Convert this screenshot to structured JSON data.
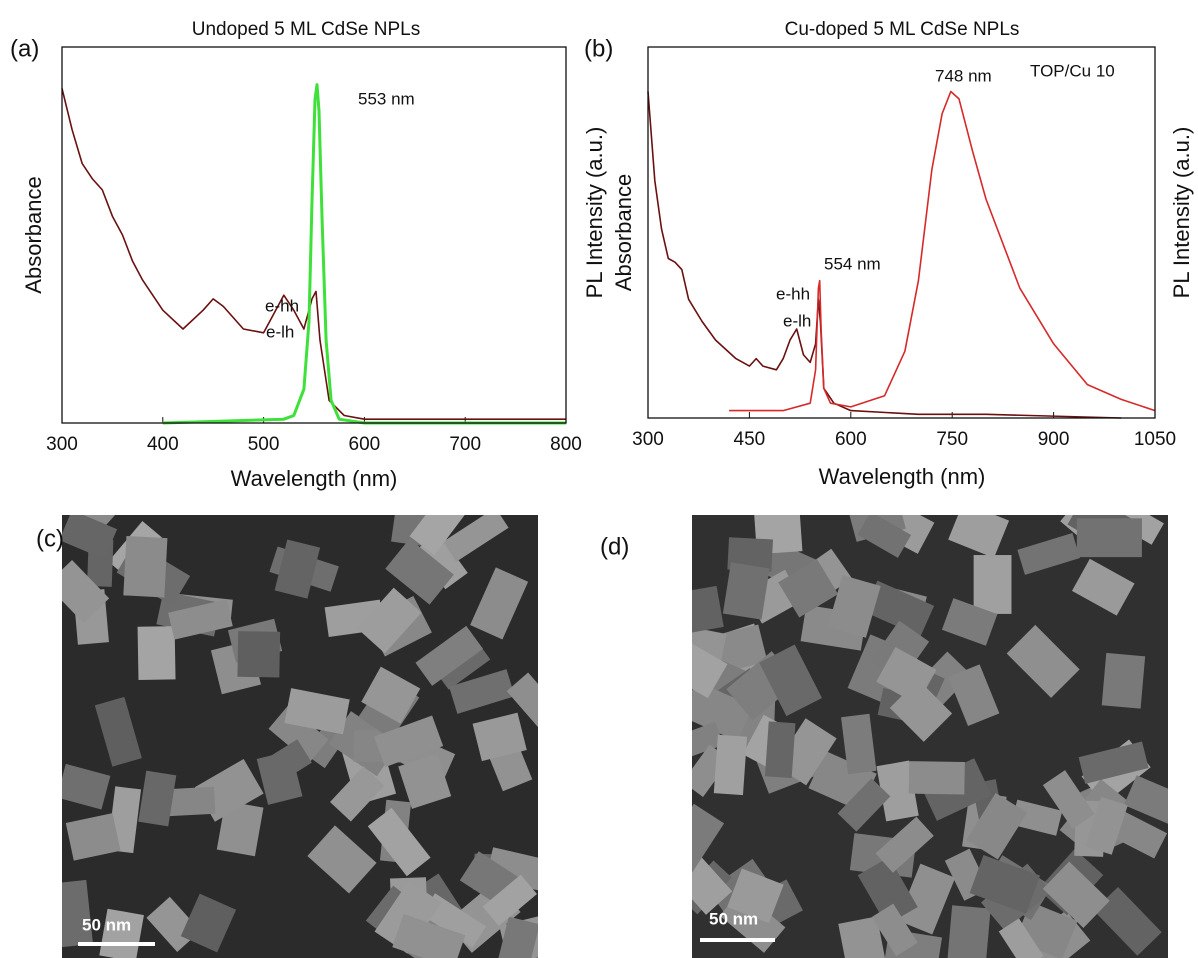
{
  "chart_data": [
    {
      "type": "line",
      "title": "Undoped 5 ML CdSe NPLs",
      "panel_label": "(a)",
      "xlabel": "Wavelength (nm)",
      "ylabel": "Absorbance",
      "xlim": [
        300,
        800
      ],
      "xticks": [
        300,
        400,
        500,
        600,
        700,
        800
      ],
      "ylim": [
        0,
        1
      ],
      "annotations": [
        "553 nm",
        "e-hh",
        "e-lh"
      ],
      "series": [
        {
          "color": "#6b1010",
          "x": [
            300,
            310,
            320,
            330,
            340,
            350,
            360,
            370,
            380,
            400,
            420,
            440,
            450,
            460,
            480,
            500,
            510,
            520,
            530,
            540,
            548,
            552,
            556,
            565,
            580,
            600,
            700,
            800
          ],
          "values": [
            0.89,
            0.78,
            0.69,
            0.65,
            0.62,
            0.55,
            0.5,
            0.43,
            0.38,
            0.3,
            0.25,
            0.3,
            0.33,
            0.31,
            0.25,
            0.24,
            0.29,
            0.34,
            0.3,
            0.25,
            0.33,
            0.35,
            0.22,
            0.06,
            0.02,
            0.01,
            0.01,
            0.01
          ]
        },
        {
          "color": "#3ee03a",
          "x": [
            400,
            520,
            530,
            540,
            545,
            548,
            551,
            553,
            555,
            558,
            562,
            567,
            575,
            600,
            700,
            800
          ],
          "values": [
            0,
            0.01,
            0.02,
            0.09,
            0.27,
            0.59,
            0.86,
            0.9,
            0.83,
            0.54,
            0.22,
            0.06,
            0.01,
            0,
            0,
            0
          ]
        }
      ]
    },
    {
      "type": "line",
      "title": "Cu-doped 5 ML CdSe NPLs",
      "panel_label": "(b)",
      "xlabel": "Wavelength (nm)",
      "ylabel": "Absorbance",
      "ylabel_extra": "PL Intensity (a.u.)",
      "y2label": "PL Intensity (a.u.)",
      "xlim": [
        300,
        1050
      ],
      "xticks": [
        300,
        450,
        600,
        750,
        900,
        1050
      ],
      "ylim": [
        0,
        1
      ],
      "annotations": [
        "748 nm",
        "TOP/Cu 10",
        "554 nm",
        "e-hh",
        "e-lh"
      ],
      "series": [
        {
          "color": "#6b1010",
          "x": [
            300,
            310,
            320,
            330,
            340,
            350,
            360,
            380,
            400,
            430,
            450,
            460,
            470,
            490,
            500,
            510,
            520,
            530,
            540,
            548,
            552,
            555,
            560,
            575,
            600,
            700,
            800,
            1000
          ],
          "values": [
            0.88,
            0.64,
            0.51,
            0.43,
            0.42,
            0.4,
            0.32,
            0.26,
            0.21,
            0.16,
            0.14,
            0.16,
            0.14,
            0.13,
            0.16,
            0.21,
            0.24,
            0.17,
            0.15,
            0.2,
            0.32,
            0.26,
            0.08,
            0.04,
            0.02,
            0.01,
            0.01,
            0
          ]
        },
        {
          "color": "#d62a2a",
          "x": [
            420,
            500,
            540,
            548,
            552,
            554,
            556,
            560,
            570,
            600,
            650,
            680,
            700,
            720,
            735,
            748,
            760,
            780,
            800,
            850,
            900,
            950,
            1000,
            1050
          ],
          "values": [
            0.02,
            0.02,
            0.04,
            0.13,
            0.35,
            0.37,
            0.24,
            0.08,
            0.04,
            0.03,
            0.06,
            0.18,
            0.37,
            0.67,
            0.82,
            0.88,
            0.86,
            0.72,
            0.59,
            0.35,
            0.2,
            0.09,
            0.05,
            0.02
          ]
        }
      ]
    }
  ],
  "images": [
    {
      "panel_label": "(c)",
      "scale_bar": "50 nm"
    },
    {
      "panel_label": "(d)",
      "scale_bar": "50 nm"
    }
  ]
}
